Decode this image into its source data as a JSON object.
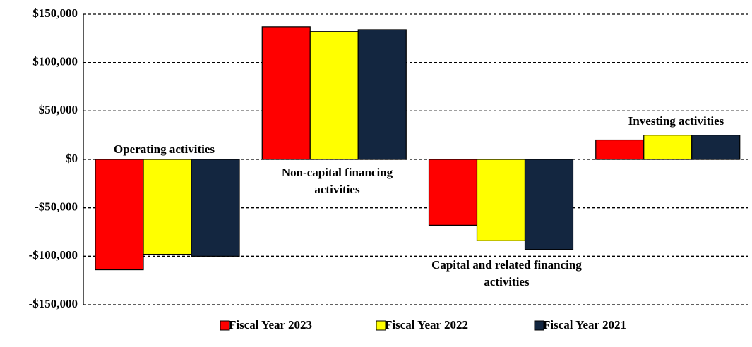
{
  "chart_data": {
    "type": "bar",
    "categories": [
      "Operating activities",
      "Non-capital financing activities",
      "Capital and related financing activities",
      "Investing activities"
    ],
    "series": [
      {
        "name": "Fiscal Year 2023",
        "color": "#ff0000",
        "values": [
          -114000,
          137000,
          -68000,
          20000
        ]
      },
      {
        "name": "Fiscal Year 2022",
        "color": "#ffff00",
        "values": [
          -98000,
          132000,
          -84000,
          25000
        ]
      },
      {
        "name": "Fiscal Year 2021",
        "color": "#132640",
        "values": [
          -100000,
          134000,
          -93000,
          25000
        ]
      }
    ],
    "ylim": [
      -150000,
      150000
    ],
    "yticks": [
      {
        "value": -150000,
        "label": "-$150,000"
      },
      {
        "value": -100000,
        "label": "-$100,000"
      },
      {
        "value": -50000,
        "label": "-$50,000"
      },
      {
        "value": 0,
        "label": "$0"
      },
      {
        "value": 50000,
        "label": "$50,000"
      },
      {
        "value": 100000,
        "label": "$100,000"
      },
      {
        "value": 150000,
        "label": "$150,000"
      }
    ],
    "grid": true,
    "legend": "bottom"
  }
}
